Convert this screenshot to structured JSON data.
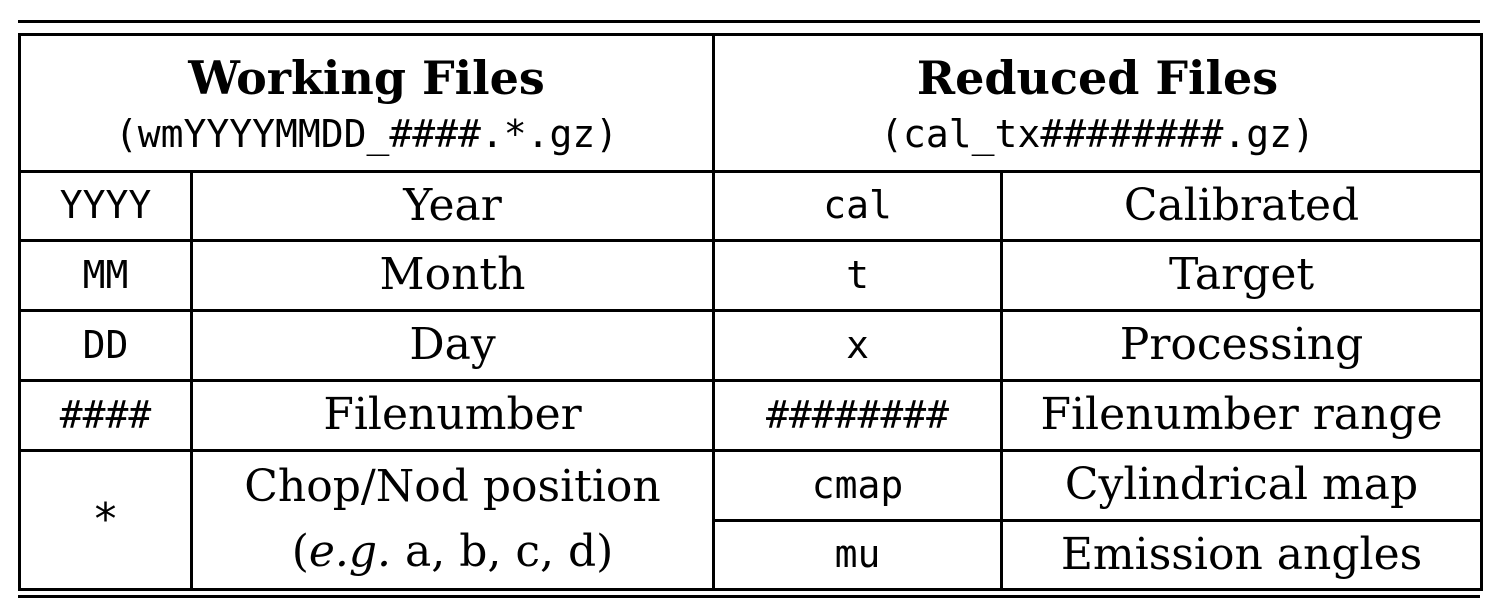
{
  "table": {
    "working": {
      "title": "Working Files",
      "pattern": "(wmYYYYMMDD_####.*.gz)",
      "rows": [
        {
          "code": "YYYY",
          "desc": "Year"
        },
        {
          "code": "MM",
          "desc": "Month"
        },
        {
          "code": "DD",
          "desc": "Day"
        },
        {
          "code": "####",
          "desc": "Filenumber"
        },
        {
          "code": "*",
          "desc_line1": "Chop/Nod position",
          "desc_line2_open": "(",
          "desc_line2_eg": "e.g.",
          "desc_line2_rest": " a, b, c, d)"
        }
      ]
    },
    "reduced": {
      "title": "Reduced Files",
      "pattern": "(cal_tx########.gz)",
      "rows": [
        {
          "code": "cal",
          "desc": "Calibrated"
        },
        {
          "code": "t",
          "desc": "Target"
        },
        {
          "code": "x",
          "desc": "Processing"
        },
        {
          "code": "########",
          "desc": "Filenumber range"
        },
        {
          "code": "cmap",
          "desc": "Cylindrical map"
        },
        {
          "code": "mu",
          "desc": "Emission angles"
        }
      ]
    }
  }
}
